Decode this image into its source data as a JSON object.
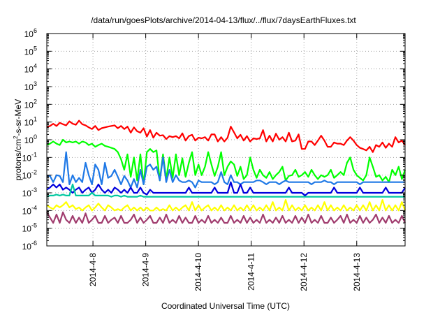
{
  "chart_data": {
    "type": "line",
    "title": "/data/run/goesPlots/archive/2014-04-13/flux/../flux/7daysEarthFluxes.txt",
    "xlabel": "Coordinated Universal Time (UTC)",
    "ylabel": {
      "base": "protons/cm",
      "sup": "2",
      "rest": "-s-sr-MeV"
    },
    "yscale": "log",
    "ylim_exp": [
      -6,
      6
    ],
    "y_tick_exponents": [
      6,
      5,
      4,
      3,
      2,
      1,
      0,
      -1,
      -2,
      -3,
      -4,
      -5,
      -6
    ],
    "y_tick_base": "10",
    "xlim": [
      "2014-04-07T03:00",
      "2014-04-13T22:00"
    ],
    "x_tick_labels": [
      "2014-4-8",
      "2014-4-9",
      "2014-4-10",
      "2014-4-11",
      "2014-4-12",
      "2014-4-13"
    ],
    "grid": true,
    "series": [
      {
        "color": "#ff0000",
        "values": [
          5.0,
          6.0,
          8.0,
          6.0,
          9.0,
          7.5,
          6.5,
          11.0,
          8.0,
          7.0,
          12.0,
          7.5,
          6.5,
          5.0,
          4.0,
          6.0,
          3.5,
          4.5,
          5.0,
          5.5,
          6.0,
          6.5,
          4.5,
          6.0,
          4.0,
          5.5,
          2.5,
          5.0,
          3.0,
          2.5,
          4.5,
          1.5,
          3.5,
          1.3,
          2.5,
          1.7,
          1.8,
          1.1,
          1.6,
          1.4,
          1.6,
          1.2,
          2.3,
          0.9,
          1.6,
          1.9,
          0.9,
          1.3,
          1.2,
          1.4,
          0.9,
          2.0,
          2.0,
          0.8,
          1.4,
          0.8,
          1.3,
          5.5,
          2.6,
          1.2,
          1.9,
          0.9,
          1.6,
          0.8,
          1.2,
          1.1,
          1.2,
          3.5,
          0.8,
          1.7,
          0.8,
          2.2,
          1.0,
          1.4,
          0.8,
          2.5,
          0.8,
          0.9,
          2.0,
          0.3,
          0.3,
          0.8,
          0.8,
          0.5,
          0.9,
          1.7,
          0.9,
          0.4,
          0.4,
          0.7,
          0.6,
          0.6,
          0.5,
          0.9,
          1.4,
          0.9,
          0.5,
          0.35,
          0.3,
          0.25,
          0.4,
          0.2,
          0.5,
          0.4,
          0.7,
          0.35,
          0.6,
          0.4,
          1.4,
          0.7,
          0.9,
          0.5
        ]
      },
      {
        "color": "#00ff00",
        "values": [
          0.5,
          0.6,
          0.8,
          0.6,
          0.5,
          1.0,
          0.7,
          0.8,
          0.7,
          0.8,
          0.6,
          0.8,
          0.7,
          0.5,
          0.6,
          0.4,
          0.5,
          0.6,
          0.45,
          0.4,
          0.35,
          0.3,
          0.2,
          0.08,
          0.02,
          0.15,
          0.008,
          0.1,
          0.005,
          0.15,
          0.003,
          0.2,
          0.3,
          0.2,
          0.25,
          0.005,
          0.15,
          0.006,
          0.1,
          0.007,
          0.15,
          0.01,
          0.09,
          0.008,
          0.05,
          0.2,
          0.01,
          0.04,
          0.01,
          0.03,
          0.2,
          0.04,
          0.009,
          0.03,
          0.2,
          0.01,
          0.03,
          0.06,
          0.04,
          0.009,
          0.03,
          0.006,
          0.01,
          0.1,
          0.02,
          0.007,
          0.02,
          0.01,
          0.007,
          0.015,
          0.006,
          0.01,
          0.015,
          0.03,
          0.005,
          0.009,
          0.01,
          0.02,
          0.008,
          0.01,
          0.015,
          0.008,
          0.02,
          0.01,
          0.006,
          0.01,
          0.008,
          0.01,
          0.02,
          0.007,
          0.01,
          0.015,
          0.01,
          0.05,
          0.1,
          0.02,
          0.01,
          0.007,
          0.005,
          0.01,
          0.1,
          0.03,
          0.008,
          0.01,
          0.005,
          0.008,
          0.004,
          0.02,
          0.01,
          0.03,
          0.006,
          0.02
        ]
      },
      {
        "color": "#1e78e6",
        "values": [
          0.009,
          0.009,
          0.004,
          0.01,
          0.009,
          0.004,
          0.2,
          0.003,
          0.01,
          0.004,
          0.007,
          0.004,
          0.05,
          0.01,
          0.003,
          0.04,
          0.02,
          0.003,
          0.05,
          0.007,
          0.009,
          0.02,
          0.008,
          0.003,
          0.009,
          0.005,
          0.002,
          0.006,
          0.002,
          0.02,
          0.003,
          0.03,
          0.04,
          0.02,
          0.03,
          0.005,
          0.1,
          0.004,
          0.02,
          0.004,
          0.01,
          0.005,
          0.004,
          0.004,
          0.005,
          0.004,
          0.002,
          0.005,
          0.004,
          0.004,
          0.004,
          0.004,
          0.003,
          0.004,
          0.015,
          0.004,
          0.003,
          0.01,
          0.004,
          0.004,
          0.003,
          0.004,
          0.004,
          0.004,
          0.004,
          0.005,
          0.005,
          0.004,
          0.003,
          0.004,
          0.004,
          0.004,
          0.003,
          0.004,
          0.005,
          0.004,
          0.004,
          0.004,
          0.004,
          0.004,
          0.004,
          0.004,
          0.003,
          0.004,
          0.004,
          0.004,
          0.005,
          0.004,
          0.004,
          0.003,
          0.004,
          0.004,
          0.004,
          0.004,
          0.004,
          0.004,
          0.004,
          0.003,
          0.004,
          0.004,
          0.004,
          0.004,
          0.004,
          0.004,
          0.004,
          0.004,
          0.004,
          0.004,
          0.004,
          0.004,
          0.004,
          0.004
        ]
      },
      {
        "color": "#0000dd",
        "values": [
          0.0015,
          0.002,
          0.003,
          0.002,
          0.003,
          0.0015,
          0.002,
          0.0015,
          0.001,
          0.0015,
          0.002,
          0.001,
          0.0015,
          0.002,
          0.001,
          0.0015,
          0.003,
          0.0015,
          0.001,
          0.0015,
          0.001,
          0.002,
          0.0015,
          0.001,
          0.0015,
          0.001,
          0.002,
          0.001,
          0.001,
          0.002,
          0.001,
          0.0008,
          0.0015,
          0.001,
          0.001,
          0.001,
          0.001,
          0.001,
          0.001,
          0.001,
          0.001,
          0.001,
          0.001,
          0.001,
          0.002,
          0.001,
          0.001,
          0.001,
          0.001,
          0.001,
          0.001,
          0.001,
          0.002,
          0.001,
          0.001,
          0.001,
          0.001,
          0.004,
          0.001,
          0.001,
          0.003,
          0.001,
          0.001,
          0.002,
          0.001,
          0.001,
          0.001,
          0.001,
          0.001,
          0.001,
          0.001,
          0.001,
          0.001,
          0.001,
          0.001,
          0.002,
          0.001,
          0.001,
          0.001,
          0.001,
          0.0007,
          0.001,
          0.001,
          0.001,
          0.001,
          0.001,
          0.001,
          0.001,
          0.001,
          0.002,
          0.001,
          0.001,
          0.001,
          0.001,
          0.001,
          0.001,
          0.001,
          0.002,
          0.001,
          0.001,
          0.001,
          0.001,
          0.001,
          0.001,
          0.001,
          0.002,
          0.001,
          0.001,
          0.001,
          0.001,
          0.001,
          0.002
        ]
      },
      {
        "color": "#00c8a0",
        "values": [
          0.0006,
          0.0007,
          0.0007,
          0.0008,
          0.0007,
          0.0008,
          0.0007,
          0.0007,
          0.003,
          0.0007,
          0.0007,
          0.0007,
          0.0007,
          0.0007,
          0.001,
          0.0007,
          0.0007,
          0.0007,
          0.0007,
          0.0007,
          0.0006,
          0.0007,
          0.0007,
          0.0006,
          0.0007,
          0.0006,
          0.0006,
          0.0006,
          0.0006,
          0.0007,
          0.0006,
          0.0006,
          0.0006,
          0.0006,
          0.0006,
          0.0006,
          0.0006,
          0.0006,
          0.0006,
          0.0006,
          0.0006,
          0.0006,
          0.0006,
          0.0006,
          0.0006,
          0.0006,
          0.0006,
          0.0006,
          0.0006,
          0.0006,
          0.0006,
          0.0006,
          0.0006,
          0.0006,
          0.0006,
          0.0006,
          0.0006,
          0.0006,
          0.0006,
          0.0006,
          0.0006,
          0.0006,
          0.0006,
          0.0006,
          0.0006,
          0.0006,
          0.0006,
          0.0006,
          0.0006,
          0.0006,
          0.0006,
          0.0006,
          0.0006,
          0.0006,
          0.0006,
          0.0006,
          0.0006,
          0.0006,
          0.0006,
          0.0006,
          0.0006,
          0.0006,
          0.0006,
          0.0006,
          0.0006,
          0.0006,
          0.0006,
          0.0006,
          0.0006,
          0.0006,
          0.0006,
          0.0006,
          0.0006,
          0.0006,
          0.0006,
          0.0006,
          0.0006,
          0.0006,
          0.0006,
          0.0006,
          0.0006,
          0.0006,
          0.0006,
          0.0006,
          0.0006,
          0.0006,
          0.0006,
          0.0006,
          0.0006,
          0.0006,
          0.0006,
          0.0006
        ]
      },
      {
        "color": "#ffff00",
        "values": [
          0.0002,
          0.00015,
          0.00012,
          0.0002,
          0.00015,
          0.0002,
          0.0003,
          0.00015,
          0.0002,
          0.00012,
          0.00015,
          0.0001,
          0.00015,
          0.0002,
          0.0001,
          0.00015,
          0.00025,
          0.00015,
          0.0001,
          0.0002,
          0.00015,
          0.0001,
          0.00012,
          0.0001,
          0.00015,
          0.0002,
          0.0001,
          0.00015,
          0.0001,
          0.00015,
          0.0001,
          0.00015,
          0.0001,
          0.0001,
          0.00015,
          0.0001,
          0.00012,
          0.0001,
          0.0002,
          0.0001,
          0.00015,
          0.0001,
          0.00015,
          0.0002,
          0.0001,
          0.0003,
          0.0001,
          0.0002,
          0.0001,
          0.00015,
          0.0002,
          0.0001,
          0.00015,
          0.0001,
          0.0002,
          0.0001,
          0.00015,
          0.0001,
          0.0002,
          0.0001,
          0.00015,
          0.0001,
          0.0002,
          0.0001,
          0.0002,
          0.0001,
          0.00015,
          0.0001,
          0.0002,
          0.0001,
          0.0003,
          0.0001,
          0.00015,
          0.0001,
          0.0004,
          0.0001,
          0.0002,
          0.0001,
          0.00015,
          0.0001,
          0.0002,
          0.0001,
          0.00015,
          0.0001,
          0.0002,
          0.0001,
          0.0003,
          0.0001,
          0.0002,
          0.0001,
          0.00015,
          0.0001,
          0.0002,
          0.0001,
          0.00015,
          0.0001,
          0.0002,
          0.0001,
          0.0002,
          0.0001,
          0.0003,
          0.0001,
          0.0002,
          0.0001,
          0.0004,
          0.0001,
          0.0002,
          0.0001,
          0.0002,
          0.0001,
          0.0003,
          0.0001
        ]
      },
      {
        "color": "#a03c6e",
        "values": [
          8e-05,
          4e-05,
          2e-05,
          6e-05,
          2e-05,
          8e-05,
          3e-05,
          2e-05,
          5e-05,
          2e-05,
          4e-05,
          2e-05,
          7e-05,
          2e-05,
          3e-05,
          5e-05,
          2e-05,
          2e-05,
          5e-05,
          2e-05,
          3e-05,
          4e-05,
          2e-05,
          5e-05,
          2e-05,
          2e-05,
          3e-05,
          6e-05,
          2e-05,
          4e-05,
          2e-05,
          3e-05,
          5e-05,
          2e-05,
          2e-05,
          4e-05,
          2e-05,
          6e-05,
          2e-05,
          3e-05,
          2e-05,
          5e-05,
          2e-05,
          4e-05,
          2e-05,
          2e-05,
          5e-05,
          2e-05,
          3e-05,
          2e-05,
          5e-05,
          2e-05,
          3e-05,
          2e-05,
          4e-05,
          2e-05,
          2e-05,
          5e-05,
          2e-05,
          3e-05,
          2e-05,
          5e-05,
          2e-05,
          4e-05,
          2e-05,
          3e-05,
          2e-05,
          6e-05,
          2e-05,
          3e-05,
          2e-05,
          4e-05,
          2e-05,
          5e-05,
          2e-05,
          3e-05,
          2e-05,
          5e-05,
          2e-05,
          4e-05,
          2e-05,
          6e-05,
          2e-05,
          3e-05,
          2e-05,
          5e-05,
          2e-05,
          2e-05,
          4e-05,
          2e-05,
          3e-05,
          5e-05,
          2e-05,
          6e-05,
          2e-05,
          3e-05,
          2e-05,
          5e-05,
          2e-05,
          4e-05,
          2e-05,
          3e-05,
          6e-05,
          2e-05,
          4e-05,
          2e-05,
          5e-05,
          2e-05,
          3e-05,
          2e-05,
          5e-05,
          2e-05
        ]
      }
    ]
  }
}
